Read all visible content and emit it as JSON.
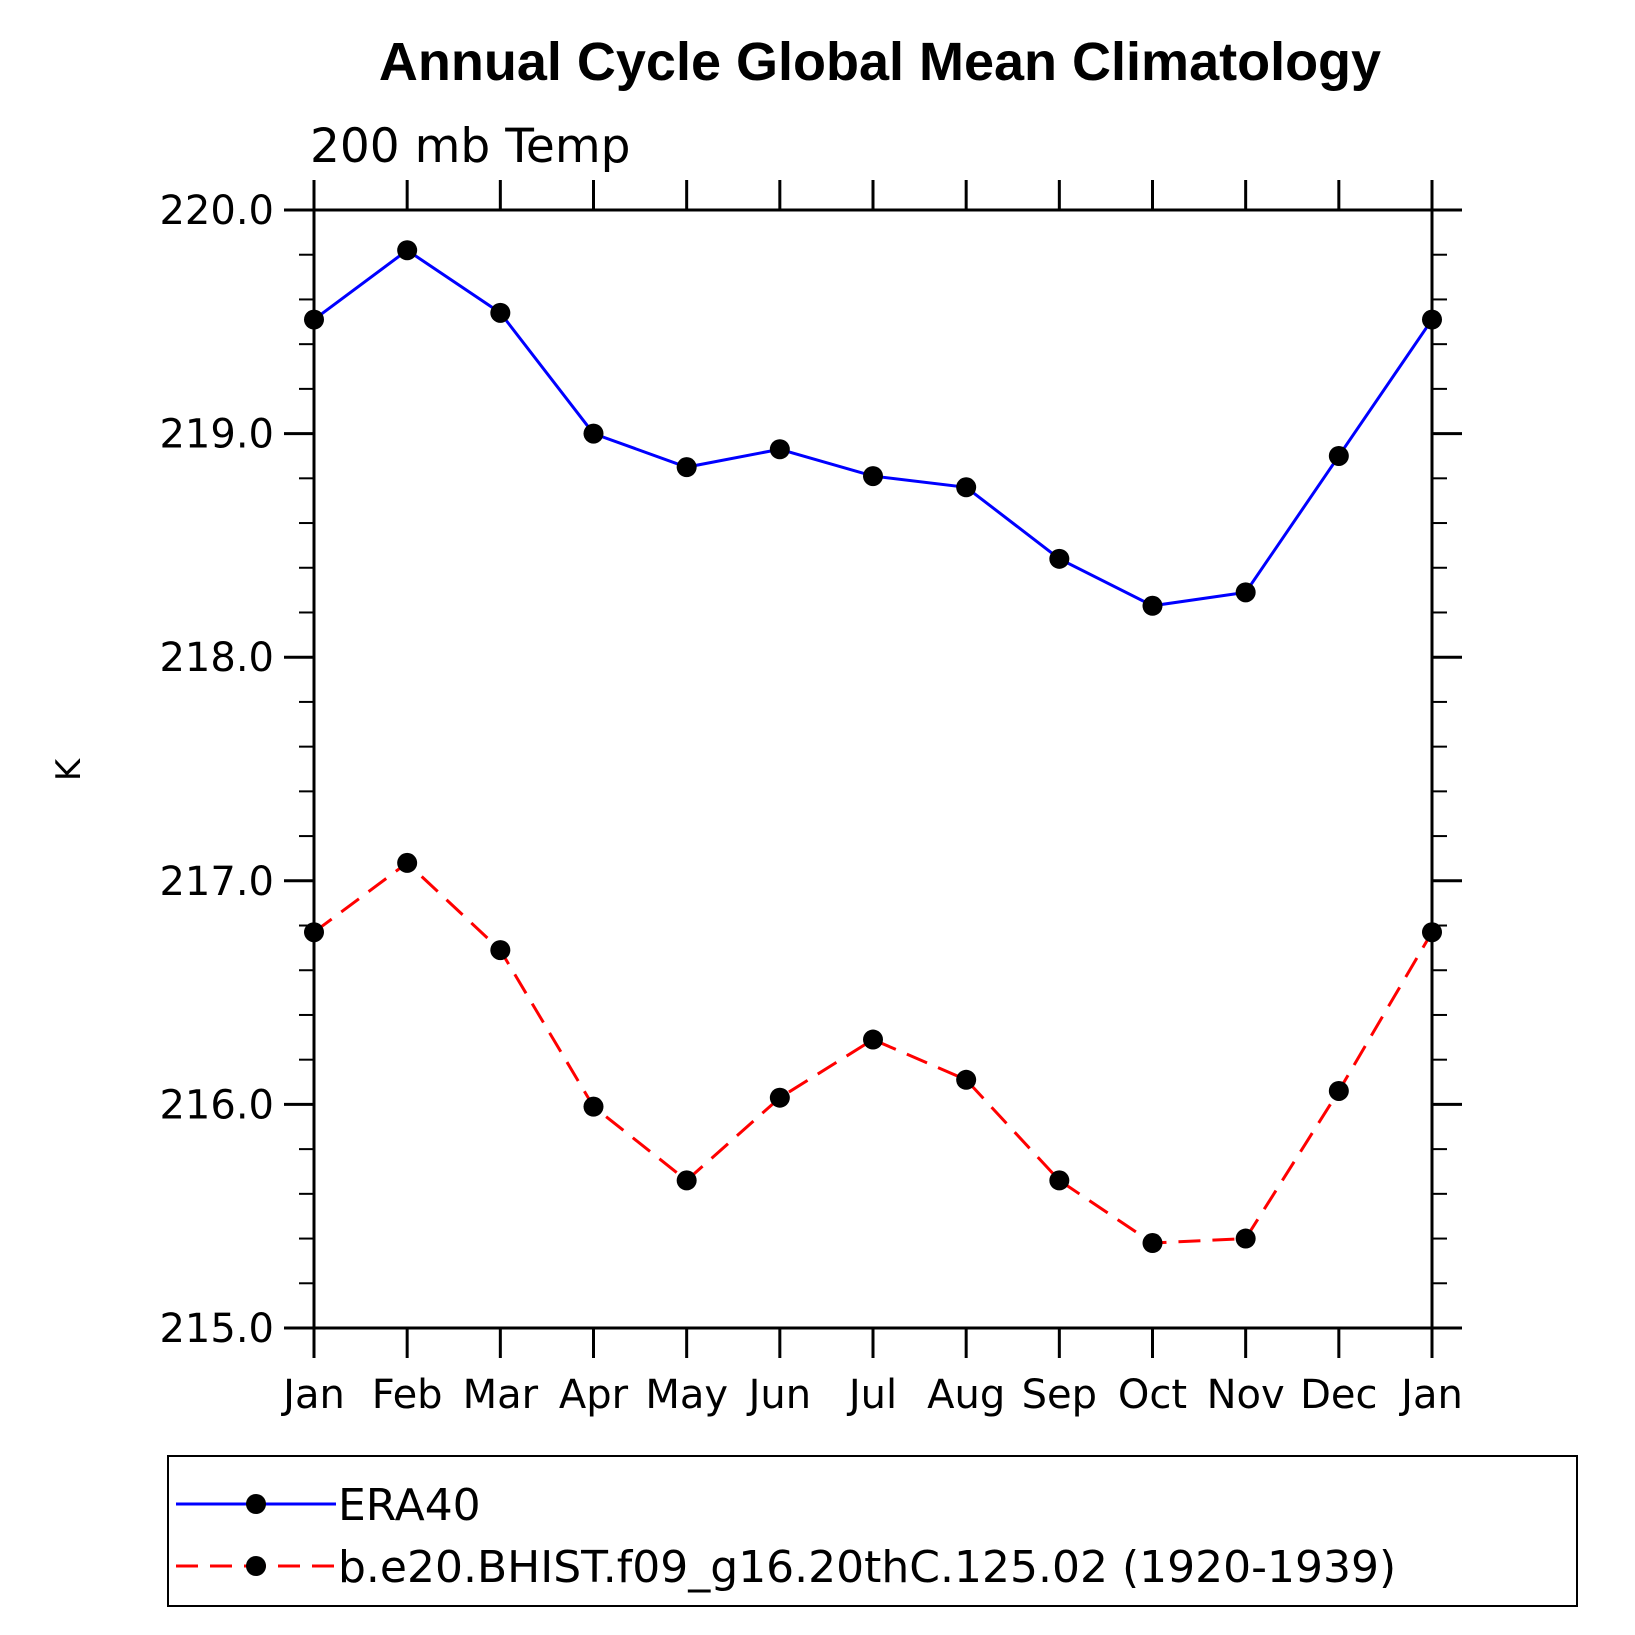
{
  "chart_data": {
    "type": "line",
    "title": "Annual Cycle Global Mean Climatology",
    "subtitle": "200 mb Temp",
    "xlabel": "",
    "ylabel": "K",
    "categories": [
      "Jan",
      "Feb",
      "Mar",
      "Apr",
      "May",
      "Jun",
      "Jul",
      "Aug",
      "Sep",
      "Oct",
      "Nov",
      "Dec",
      "Jan"
    ],
    "ylim": [
      215.0,
      220.0
    ],
    "yticks": [
      "215.0",
      "216.0",
      "217.0",
      "218.0",
      "219.0",
      "220.0"
    ],
    "yminor_step": 0.2,
    "grid": false,
    "legend_position": "bottom",
    "series": [
      {
        "name": "ERA40",
        "color": "#0000ff",
        "dash": "solid",
        "marker": "filled-circle",
        "values": [
          219.51,
          219.82,
          219.54,
          219.0,
          218.85,
          218.93,
          218.81,
          218.76,
          218.44,
          218.23,
          218.29,
          218.9,
          219.51
        ]
      },
      {
        "name": "b.e20.BHIST.f09_g16.20thC.125.02 (1920-1939)",
        "color": "#ff0000",
        "dash": "dashed",
        "marker": "filled-circle",
        "values": [
          216.77,
          217.08,
          216.69,
          215.99,
          215.66,
          216.03,
          216.29,
          216.11,
          215.66,
          215.38,
          215.4,
          216.06,
          216.77
        ]
      }
    ]
  }
}
